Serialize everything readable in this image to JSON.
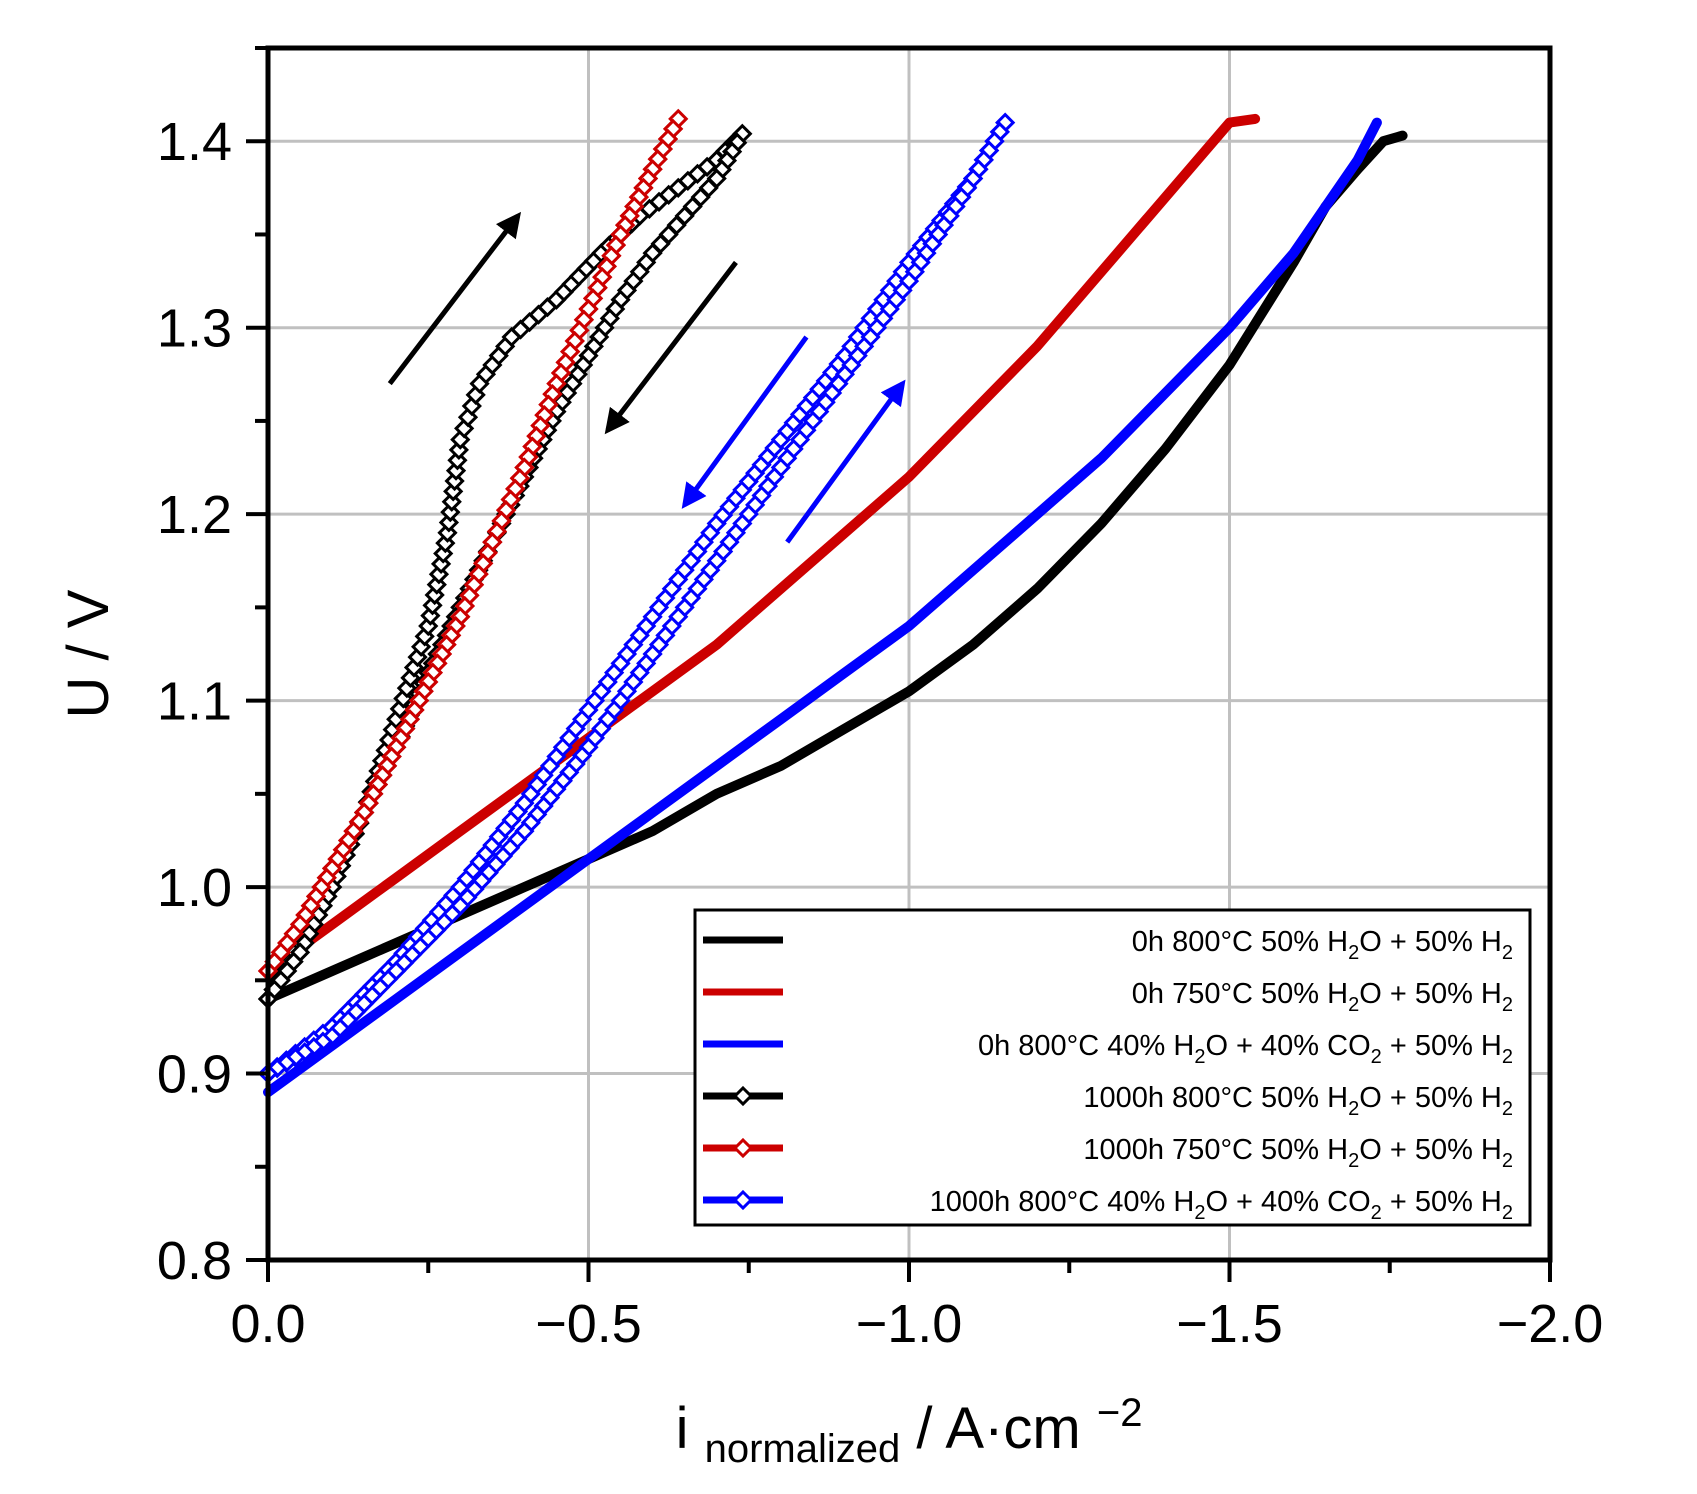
{
  "chart_data": {
    "type": "line",
    "title": "",
    "xlabel": {
      "main": "i",
      "sub": "normalized",
      "rest": " / A·cm",
      "sup": "−2"
    },
    "ylabel": "U / V",
    "xlim": [
      0.0,
      -2.0
    ],
    "ylim": [
      0.8,
      1.45
    ],
    "x_ticks": [
      0.0,
      -0.5,
      -1.0,
      -1.5,
      -2.0
    ],
    "x_tick_labels": [
      "0.0",
      "−0.5",
      "−1.0",
      "−1.5",
      "−2.0"
    ],
    "y_ticks": [
      0.8,
      0.9,
      1.0,
      1.1,
      1.2,
      1.3,
      1.4
    ],
    "y_tick_labels": [
      "0.8",
      "0.9",
      "1.0",
      "1.1",
      "1.2",
      "1.3",
      "1.4"
    ],
    "grid": true,
    "legend_position": "bottom-right",
    "series": [
      {
        "name": "0h 800°C 50% H2O + 50% H2",
        "legend": {
          "pre": "0h 800°C 50% H",
          "s1": "2",
          "mid": "O + 50% H",
          "s2": "2",
          "post": ""
        },
        "color": "#000000",
        "marker": "none",
        "x": [
          0.0,
          -0.1,
          -0.2,
          -0.3,
          -0.4,
          -0.5,
          -0.6,
          -0.7,
          -0.8,
          -0.9,
          -1.0,
          -1.1,
          -1.2,
          -1.3,
          -1.4,
          -1.5,
          -1.6,
          -1.65,
          -1.7,
          -1.74,
          -1.77
        ],
        "y": [
          0.94,
          0.955,
          0.97,
          0.985,
          1.0,
          1.015,
          1.03,
          1.05,
          1.065,
          1.085,
          1.105,
          1.13,
          1.16,
          1.195,
          1.235,
          1.28,
          1.335,
          1.365,
          1.385,
          1.4,
          1.403
        ]
      },
      {
        "name": "0h 750°C 50% H2O + 50% H2",
        "legend": {
          "pre": "0h 750°C 50% H",
          "s1": "2",
          "mid": "O + 50% H",
          "s2": "2",
          "post": ""
        },
        "color": "#cc0000",
        "marker": "none",
        "x": [
          0.0,
          -0.1,
          -0.2,
          -0.3,
          -0.4,
          -0.5,
          -0.6,
          -0.7,
          -0.8,
          -0.9,
          -1.0,
          -1.1,
          -1.2,
          -1.3,
          -1.4,
          -1.5,
          -1.54
        ],
        "y": [
          0.955,
          0.98,
          1.005,
          1.03,
          1.055,
          1.08,
          1.105,
          1.13,
          1.16,
          1.19,
          1.22,
          1.255,
          1.29,
          1.33,
          1.37,
          1.41,
          1.412
        ]
      },
      {
        "name": "0h 800°C 40% H2O + 40% CO2 + 50% H2",
        "legend": {
          "pre": "0h 800°C 40% H",
          "s1": "2",
          "mid": "O + 40% CO",
          "s2": "2",
          "post": " + 50% H",
          "s3": "2"
        },
        "color": "#0000ff",
        "marker": "none",
        "x": [
          0.0,
          -0.1,
          -0.2,
          -0.3,
          -0.4,
          -0.5,
          -0.6,
          -0.7,
          -0.8,
          -0.9,
          -1.0,
          -1.1,
          -1.2,
          -1.3,
          -1.4,
          -1.5,
          -1.6,
          -1.7,
          -1.73
        ],
        "y": [
          0.89,
          0.915,
          0.94,
          0.965,
          0.99,
          1.015,
          1.04,
          1.065,
          1.09,
          1.115,
          1.14,
          1.17,
          1.2,
          1.23,
          1.265,
          1.3,
          1.34,
          1.39,
          1.41
        ]
      },
      {
        "name": "1000h 800°C 50% H2O + 50% H2",
        "legend": {
          "pre": "1000h 800°C 50% H",
          "s1": "2",
          "mid": "O + 50% H",
          "s2": "2",
          "post": ""
        },
        "color": "#000000",
        "marker": "diamond",
        "x": [
          0.0,
          -0.05,
          -0.1,
          -0.15,
          -0.2,
          -0.25,
          -0.28,
          -0.3,
          -0.33,
          -0.38,
          -0.45,
          -0.52,
          -0.58,
          -0.64,
          -0.7,
          -0.74,
          -0.7,
          -0.65,
          -0.6,
          -0.55,
          -0.5,
          -0.45,
          -0.4,
          -0.35,
          -0.3,
          -0.25,
          -0.2,
          -0.15,
          -0.1,
          -0.05,
          0.0
        ],
        "y": [
          0.94,
          0.97,
          1.0,
          1.04,
          1.09,
          1.14,
          1.19,
          1.24,
          1.27,
          1.295,
          1.315,
          1.34,
          1.36,
          1.375,
          1.39,
          1.404,
          1.38,
          1.36,
          1.34,
          1.315,
          1.285,
          1.255,
          1.22,
          1.185,
          1.15,
          1.115,
          1.075,
          1.04,
          1.0,
          0.965,
          0.94
        ]
      },
      {
        "name": "1000h 750°C 50% H2O + 50% H2",
        "legend": {
          "pre": "1000h 750°C 50% H",
          "s1": "2",
          "mid": "O + 50% H",
          "s2": "2",
          "post": ""
        },
        "color": "#cc0000",
        "marker": "diamond",
        "x": [
          0.0,
          -0.05,
          -0.1,
          -0.15,
          -0.2,
          -0.25,
          -0.3,
          -0.35,
          -0.4,
          -0.45,
          -0.5,
          -0.55,
          -0.6,
          -0.64,
          -0.6,
          -0.55,
          -0.5,
          -0.45,
          -0.4,
          -0.35,
          -0.3,
          -0.25,
          -0.2,
          -0.15,
          -0.1,
          -0.05,
          0.0
        ],
        "y": [
          0.955,
          0.98,
          1.01,
          1.04,
          1.075,
          1.11,
          1.145,
          1.185,
          1.225,
          1.27,
          1.31,
          1.35,
          1.385,
          1.412,
          1.385,
          1.35,
          1.31,
          1.27,
          1.225,
          1.185,
          1.145,
          1.11,
          1.075,
          1.04,
          1.01,
          0.98,
          0.955
        ]
      },
      {
        "name": "1000h 800°C 40% H2O + 40% CO2 + 50% H2",
        "legend": {
          "pre": "1000h 800°C 40% H",
          "s1": "2",
          "mid": "O + 40% CO",
          "s2": "2",
          "post": " + 50% H",
          "s3": "2"
        },
        "color": "#0000ff",
        "marker": "diamond",
        "x": [
          0.0,
          -0.1,
          -0.2,
          -0.3,
          -0.4,
          -0.5,
          -0.6,
          -0.7,
          -0.8,
          -0.9,
          -1.0,
          -1.1,
          -1.15,
          -1.1,
          -1.0,
          -0.9,
          -0.8,
          -0.7,
          -0.6,
          -0.5,
          -0.4,
          -0.3,
          -0.2,
          -0.1,
          0.0
        ],
        "y": [
          0.9,
          0.925,
          0.96,
          1.0,
          1.045,
          1.095,
          1.145,
          1.195,
          1.24,
          1.285,
          1.335,
          1.38,
          1.41,
          1.38,
          1.325,
          1.275,
          1.225,
          1.175,
          1.125,
          1.075,
          1.03,
          0.99,
          0.955,
          0.92,
          0.9
        ]
      }
    ],
    "annotations": [
      {
        "type": "arrow",
        "color": "#000000",
        "from": [
          -0.19,
          1.27
        ],
        "to": [
          -0.39,
          1.36
        ],
        "meaning": "sweep direction up"
      },
      {
        "type": "arrow",
        "color": "#000000",
        "from": [
          -0.73,
          1.335
        ],
        "to": [
          -0.53,
          1.245
        ],
        "meaning": "sweep direction down"
      },
      {
        "type": "arrow",
        "color": "#0000ff",
        "from": [
          -0.84,
          1.295
        ],
        "to": [
          -0.65,
          1.205
        ],
        "meaning": "sweep direction down"
      },
      {
        "type": "arrow",
        "color": "#0000ff",
        "from": [
          -0.81,
          1.185
        ],
        "to": [
          -0.99,
          1.27
        ],
        "meaning": "sweep direction up"
      }
    ]
  }
}
